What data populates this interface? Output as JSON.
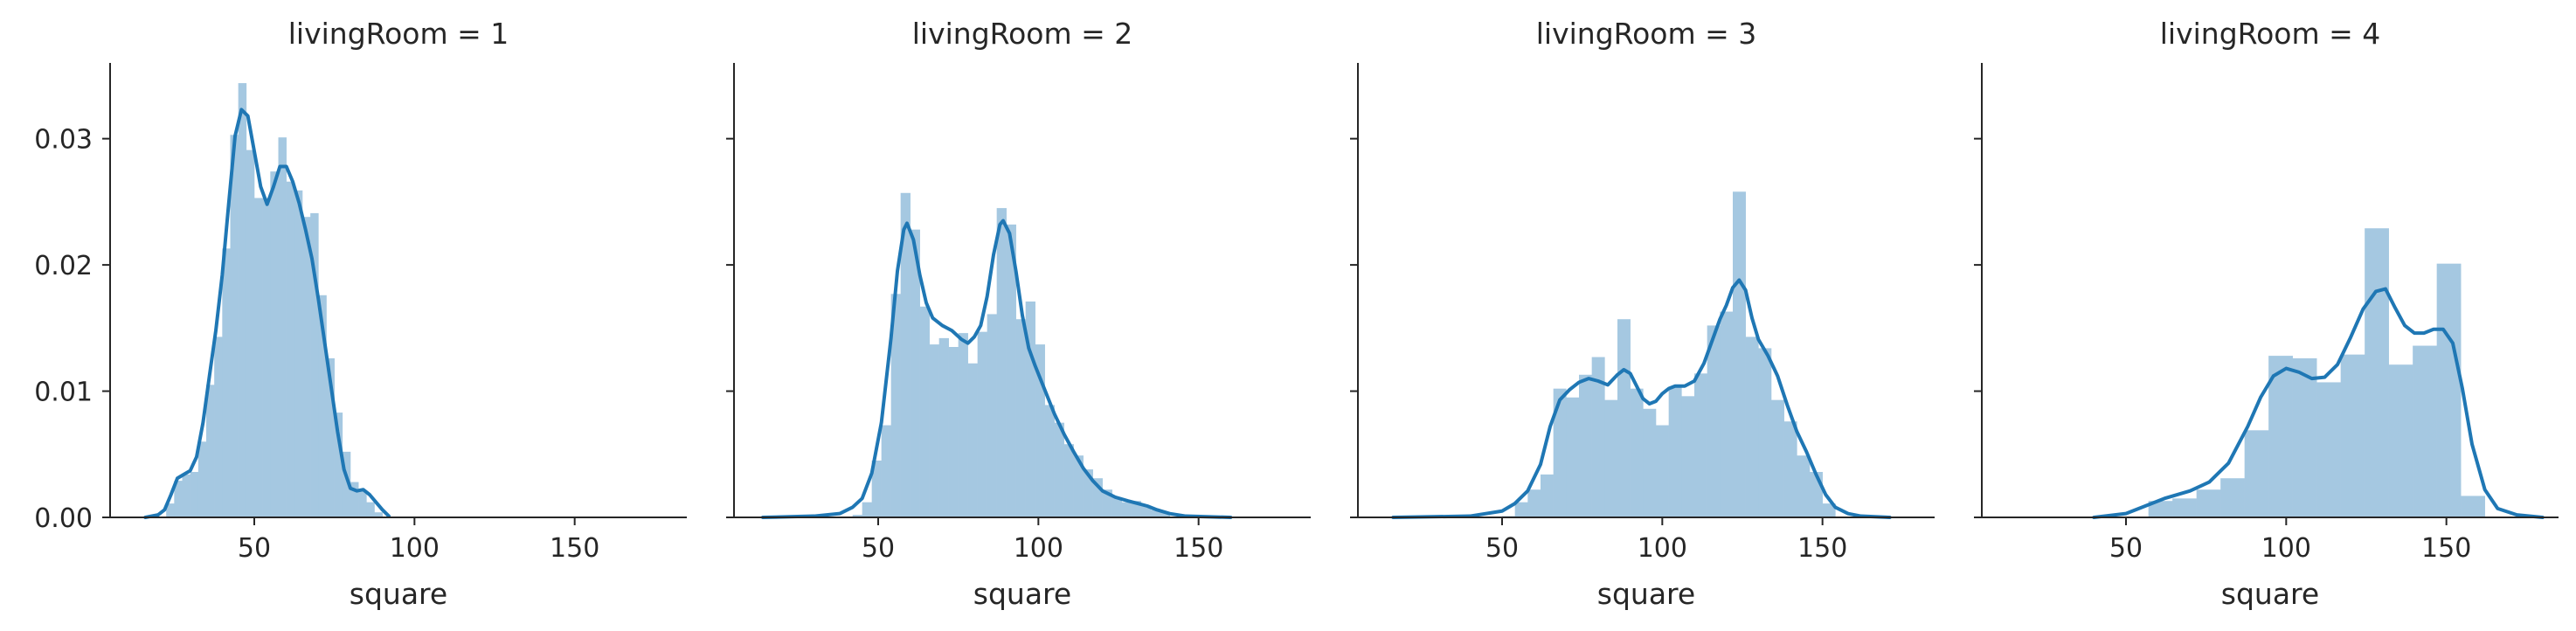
{
  "chart_data": [
    {
      "type": "histogram+kde",
      "title": "livingRoom = 1",
      "xlabel": "square",
      "ylabel": "",
      "xlim": [
        5,
        185
      ],
      "ylim": [
        0,
        0.036
      ],
      "xticks": [
        50,
        100,
        150
      ],
      "yticks": [
        0.0,
        0.01,
        0.02,
        0.03
      ],
      "ytick_labels": [
        "0.00",
        "0.01",
        "0.02",
        "0.03"
      ],
      "xtick_labels": [
        "50",
        "100",
        "150"
      ],
      "bar_color": "#a5c8e1",
      "line_color": "#1f77b4",
      "bins": [
        {
          "x0": 22.5,
          "x1": 25,
          "h": 0.0011
        },
        {
          "x0": 25,
          "x1": 27.5,
          "h": 0.0029
        },
        {
          "x0": 27.5,
          "x1": 30,
          "h": 0.0034
        },
        {
          "x0": 30,
          "x1": 32.5,
          "h": 0.0036
        },
        {
          "x0": 32.5,
          "x1": 35,
          "h": 0.006
        },
        {
          "x0": 35,
          "x1": 37.5,
          "h": 0.0105
        },
        {
          "x0": 37.5,
          "x1": 40,
          "h": 0.0143
        },
        {
          "x0": 40,
          "x1": 42.5,
          "h": 0.0213
        },
        {
          "x0": 42.5,
          "x1": 45,
          "h": 0.0303
        },
        {
          "x0": 45,
          "x1": 47.5,
          "h": 0.0344
        },
        {
          "x0": 47.5,
          "x1": 50,
          "h": 0.0291
        },
        {
          "x0": 50,
          "x1": 52.5,
          "h": 0.0253
        },
        {
          "x0": 52.5,
          "x1": 55,
          "h": 0.0253
        },
        {
          "x0": 55,
          "x1": 57.5,
          "h": 0.0274
        },
        {
          "x0": 57.5,
          "x1": 60,
          "h": 0.0301
        },
        {
          "x0": 60,
          "x1": 62.5,
          "h": 0.0266
        },
        {
          "x0": 62.5,
          "x1": 65,
          "h": 0.0259
        },
        {
          "x0": 65,
          "x1": 67.5,
          "h": 0.0238
        },
        {
          "x0": 67.5,
          "x1": 70,
          "h": 0.0241
        },
        {
          "x0": 70,
          "x1": 72.5,
          "h": 0.0176
        },
        {
          "x0": 72.5,
          "x1": 75,
          "h": 0.0126
        },
        {
          "x0": 75,
          "x1": 77.5,
          "h": 0.0083
        },
        {
          "x0": 77.5,
          "x1": 80,
          "h": 0.0052
        },
        {
          "x0": 80,
          "x1": 82.5,
          "h": 0.0028
        },
        {
          "x0": 82.5,
          "x1": 85,
          "h": 0.0021
        },
        {
          "x0": 85,
          "x1": 87.5,
          "h": 0.0012
        },
        {
          "x0": 87.5,
          "x1": 90,
          "h": 0.0004
        }
      ],
      "kde": [
        [
          16,
          0.0
        ],
        [
          20,
          0.0002
        ],
        [
          22,
          0.0006
        ],
        [
          24,
          0.0018
        ],
        [
          26,
          0.0031
        ],
        [
          28,
          0.0034
        ],
        [
          30,
          0.0037
        ],
        [
          32,
          0.0048
        ],
        [
          34,
          0.0075
        ],
        [
          36,
          0.0112
        ],
        [
          38,
          0.0148
        ],
        [
          40,
          0.0192
        ],
        [
          42,
          0.0248
        ],
        [
          44,
          0.0302
        ],
        [
          46,
          0.0323
        ],
        [
          48,
          0.0318
        ],
        [
          50,
          0.029
        ],
        [
          52,
          0.0262
        ],
        [
          54,
          0.0248
        ],
        [
          56,
          0.0262
        ],
        [
          58,
          0.0278
        ],
        [
          60,
          0.0278
        ],
        [
          62,
          0.0266
        ],
        [
          64,
          0.0249
        ],
        [
          66,
          0.0228
        ],
        [
          68,
          0.0205
        ],
        [
          70,
          0.0173
        ],
        [
          72,
          0.0138
        ],
        [
          74,
          0.0103
        ],
        [
          76,
          0.0068
        ],
        [
          78,
          0.0038
        ],
        [
          80,
          0.0023
        ],
        [
          82,
          0.0021
        ],
        [
          84,
          0.0022
        ],
        [
          86,
          0.0018
        ],
        [
          88,
          0.0012
        ],
        [
          90,
          0.0006
        ],
        [
          92,
          0.0001
        ]
      ]
    },
    {
      "type": "histogram+kde",
      "title": "livingRoom = 2",
      "xlabel": "square",
      "ylabel": "",
      "xlim": [
        5,
        185
      ],
      "ylim": [
        0,
        0.036
      ],
      "xticks": [
        50,
        100,
        150
      ],
      "yticks": [
        0.0,
        0.01,
        0.02,
        0.03
      ],
      "ytick_labels": [
        "0.00",
        "0.01",
        "0.02",
        "0.03"
      ],
      "xtick_labels": [
        "50",
        "100",
        "150"
      ],
      "bar_color": "#a5c8e1",
      "line_color": "#1f77b4",
      "bins": [
        {
          "x0": 42,
          "x1": 45,
          "h": 0.0002
        },
        {
          "x0": 45,
          "x1": 48,
          "h": 0.0012
        },
        {
          "x0": 48,
          "x1": 51,
          "h": 0.0045
        },
        {
          "x0": 51,
          "x1": 54,
          "h": 0.0073
        },
        {
          "x0": 54,
          "x1": 57,
          "h": 0.0177
        },
        {
          "x0": 57,
          "x1": 60,
          "h": 0.0257
        },
        {
          "x0": 60,
          "x1": 63,
          "h": 0.0228
        },
        {
          "x0": 63,
          "x1": 66,
          "h": 0.0167
        },
        {
          "x0": 66,
          "x1": 69,
          "h": 0.0137
        },
        {
          "x0": 69,
          "x1": 72,
          "h": 0.0142
        },
        {
          "x0": 72,
          "x1": 75,
          "h": 0.0135
        },
        {
          "x0": 75,
          "x1": 78,
          "h": 0.0146
        },
        {
          "x0": 78,
          "x1": 81,
          "h": 0.0122
        },
        {
          "x0": 81,
          "x1": 84,
          "h": 0.0147
        },
        {
          "x0": 84,
          "x1": 87,
          "h": 0.0161
        },
        {
          "x0": 87,
          "x1": 90,
          "h": 0.0245
        },
        {
          "x0": 90,
          "x1": 93,
          "h": 0.0232
        },
        {
          "x0": 93,
          "x1": 96,
          "h": 0.0157
        },
        {
          "x0": 96,
          "x1": 99,
          "h": 0.0171
        },
        {
          "x0": 99,
          "x1": 102,
          "h": 0.0137
        },
        {
          "x0": 102,
          "x1": 105,
          "h": 0.0089
        },
        {
          "x0": 105,
          "x1": 108,
          "h": 0.0075
        },
        {
          "x0": 108,
          "x1": 111,
          "h": 0.0058
        },
        {
          "x0": 111,
          "x1": 114,
          "h": 0.0049
        },
        {
          "x0": 114,
          "x1": 117,
          "h": 0.0038
        },
        {
          "x0": 117,
          "x1": 120,
          "h": 0.0031
        },
        {
          "x0": 120,
          "x1": 123,
          "h": 0.0022
        },
        {
          "x0": 123,
          "x1": 126,
          "h": 0.0016
        },
        {
          "x0": 126,
          "x1": 129,
          "h": 0.0012
        },
        {
          "x0": 129,
          "x1": 132,
          "h": 0.0013
        },
        {
          "x0": 132,
          "x1": 135,
          "h": 0.0009
        },
        {
          "x0": 135,
          "x1": 138,
          "h": 0.0006
        },
        {
          "x0": 138,
          "x1": 141,
          "h": 0.0004
        }
      ],
      "kde": [
        [
          14,
          0.0
        ],
        [
          30,
          0.0001
        ],
        [
          38,
          0.0003
        ],
        [
          42,
          0.0008
        ],
        [
          45,
          0.0015
        ],
        [
          48,
          0.0035
        ],
        [
          51,
          0.0075
        ],
        [
          54,
          0.0142
        ],
        [
          56,
          0.0195
        ],
        [
          58,
          0.0228
        ],
        [
          59,
          0.0233
        ],
        [
          61,
          0.022
        ],
        [
          63,
          0.0192
        ],
        [
          65,
          0.017
        ],
        [
          67,
          0.0158
        ],
        [
          70,
          0.0152
        ],
        [
          73,
          0.0148
        ],
        [
          76,
          0.0141
        ],
        [
          78,
          0.0138
        ],
        [
          80,
          0.0143
        ],
        [
          82,
          0.0152
        ],
        [
          84,
          0.0175
        ],
        [
          86,
          0.0208
        ],
        [
          88,
          0.0232
        ],
        [
          89,
          0.0235
        ],
        [
          91,
          0.0225
        ],
        [
          93,
          0.0195
        ],
        [
          95,
          0.016
        ],
        [
          97,
          0.0134
        ],
        [
          99,
          0.012
        ],
        [
          102,
          0.0101
        ],
        [
          105,
          0.0082
        ],
        [
          108,
          0.0066
        ],
        [
          111,
          0.0052
        ],
        [
          114,
          0.0039
        ],
        [
          117,
          0.0029
        ],
        [
          120,
          0.0021
        ],
        [
          124,
          0.0016
        ],
        [
          128,
          0.0013
        ],
        [
          131,
          0.0011
        ],
        [
          134,
          0.0009
        ],
        [
          137,
          0.0006
        ],
        [
          141,
          0.0003
        ],
        [
          146,
          0.0001
        ],
        [
          160,
          0.0
        ]
      ]
    },
    {
      "type": "histogram+kde",
      "title": "livingRoom = 3",
      "xlabel": "square",
      "ylabel": "",
      "xlim": [
        5,
        185
      ],
      "ylim": [
        0,
        0.036
      ],
      "xticks": [
        50,
        100,
        150
      ],
      "yticks": [
        0.0,
        0.01,
        0.02,
        0.03
      ],
      "ytick_labels": [
        "0.00",
        "0.01",
        "0.02",
        "0.03"
      ],
      "xtick_labels": [
        "50",
        "100",
        "150"
      ],
      "bar_color": "#a5c8e1",
      "line_color": "#1f77b4",
      "bins": [
        {
          "x0": 50,
          "x1": 54,
          "h": 0.0001
        },
        {
          "x0": 54,
          "x1": 58,
          "h": 0.0012
        },
        {
          "x0": 58,
          "x1": 62,
          "h": 0.0022
        },
        {
          "x0": 62,
          "x1": 66,
          "h": 0.0034
        },
        {
          "x0": 66,
          "x1": 70,
          "h": 0.0102
        },
        {
          "x0": 70,
          "x1": 74,
          "h": 0.0095
        },
        {
          "x0": 74,
          "x1": 78,
          "h": 0.0113
        },
        {
          "x0": 78,
          "x1": 82,
          "h": 0.0127
        },
        {
          "x0": 82,
          "x1": 86,
          "h": 0.0093
        },
        {
          "x0": 86,
          "x1": 90,
          "h": 0.0157
        },
        {
          "x0": 90,
          "x1": 94,
          "h": 0.0102
        },
        {
          "x0": 94,
          "x1": 98,
          "h": 0.0086
        },
        {
          "x0": 98,
          "x1": 102,
          "h": 0.0073
        },
        {
          "x0": 102,
          "x1": 106,
          "h": 0.0103
        },
        {
          "x0": 106,
          "x1": 110,
          "h": 0.0096
        },
        {
          "x0": 110,
          "x1": 114,
          "h": 0.0114
        },
        {
          "x0": 114,
          "x1": 118,
          "h": 0.0152
        },
        {
          "x0": 118,
          "x1": 122,
          "h": 0.0163
        },
        {
          "x0": 122,
          "x1": 126,
          "h": 0.0258
        },
        {
          "x0": 126,
          "x1": 130,
          "h": 0.0143
        },
        {
          "x0": 130,
          "x1": 134,
          "h": 0.0134
        },
        {
          "x0": 134,
          "x1": 138,
          "h": 0.0093
        },
        {
          "x0": 138,
          "x1": 142,
          "h": 0.0076
        },
        {
          "x0": 142,
          "x1": 146,
          "h": 0.0049
        },
        {
          "x0": 146,
          "x1": 150,
          "h": 0.0036
        },
        {
          "x0": 150,
          "x1": 154,
          "h": 0.0011
        }
      ],
      "kde": [
        [
          16,
          0.0
        ],
        [
          40,
          0.0001
        ],
        [
          50,
          0.0005
        ],
        [
          54,
          0.0011
        ],
        [
          58,
          0.0021
        ],
        [
          62,
          0.0042
        ],
        [
          65,
          0.0072
        ],
        [
          68,
          0.0093
        ],
        [
          71,
          0.0101
        ],
        [
          74,
          0.0107
        ],
        [
          77,
          0.011
        ],
        [
          80,
          0.0108
        ],
        [
          83,
          0.0105
        ],
        [
          86,
          0.0113
        ],
        [
          88,
          0.0117
        ],
        [
          90,
          0.0114
        ],
        [
          92,
          0.0104
        ],
        [
          94,
          0.0094
        ],
        [
          96,
          0.009
        ],
        [
          98,
          0.0092
        ],
        [
          100,
          0.0098
        ],
        [
          102,
          0.0102
        ],
        [
          104,
          0.0104
        ],
        [
          107,
          0.0104
        ],
        [
          110,
          0.0108
        ],
        [
          113,
          0.0122
        ],
        [
          116,
          0.0143
        ],
        [
          118,
          0.0157
        ],
        [
          120,
          0.0168
        ],
        [
          122,
          0.0182
        ],
        [
          124,
          0.0188
        ],
        [
          126,
          0.018
        ],
        [
          128,
          0.0158
        ],
        [
          130,
          0.0141
        ],
        [
          133,
          0.0128
        ],
        [
          136,
          0.0112
        ],
        [
          139,
          0.0089
        ],
        [
          142,
          0.0068
        ],
        [
          145,
          0.0052
        ],
        [
          148,
          0.0034
        ],
        [
          151,
          0.0018
        ],
        [
          154,
          0.0008
        ],
        [
          158,
          0.0003
        ],
        [
          162,
          0.0001
        ],
        [
          171,
          0.0
        ]
      ]
    },
    {
      "type": "histogram+kde",
      "title": "livingRoom = 4",
      "xlabel": "square",
      "ylabel": "",
      "xlim": [
        5,
        185
      ],
      "ylim": [
        0,
        0.036
      ],
      "xticks": [
        50,
        100,
        150
      ],
      "yticks": [
        0.0,
        0.01,
        0.02,
        0.03
      ],
      "ytick_labels": [
        "0.00",
        "0.01",
        "0.02",
        "0.03"
      ],
      "xtick_labels": [
        "50",
        "100",
        "150"
      ],
      "bar_color": "#a5c8e1",
      "line_color": "#1f77b4",
      "bins": [
        {
          "x0": 57,
          "x1": 64.5,
          "h": 0.0013
        },
        {
          "x0": 64.5,
          "x1": 72,
          "h": 0.0015
        },
        {
          "x0": 72,
          "x1": 79.5,
          "h": 0.0022
        },
        {
          "x0": 79.5,
          "x1": 87,
          "h": 0.0031
        },
        {
          "x0": 87,
          "x1": 94.5,
          "h": 0.0069
        },
        {
          "x0": 94.5,
          "x1": 102,
          "h": 0.0128
        },
        {
          "x0": 102,
          "x1": 109.5,
          "h": 0.0126
        },
        {
          "x0": 109.5,
          "x1": 117,
          "h": 0.0107
        },
        {
          "x0": 117,
          "x1": 124.5,
          "h": 0.0129
        },
        {
          "x0": 124.5,
          "x1": 132,
          "h": 0.0229
        },
        {
          "x0": 132,
          "x1": 139.5,
          "h": 0.0121
        },
        {
          "x0": 139.5,
          "x1": 147,
          "h": 0.0136
        },
        {
          "x0": 147,
          "x1": 154.5,
          "h": 0.0201
        },
        {
          "x0": 154.5,
          "x1": 162,
          "h": 0.0017
        }
      ],
      "kde": [
        [
          40,
          0.0
        ],
        [
          50,
          0.0003
        ],
        [
          56,
          0.0009
        ],
        [
          62,
          0.0015
        ],
        [
          70,
          0.0021
        ],
        [
          76,
          0.0028
        ],
        [
          82,
          0.0043
        ],
        [
          88,
          0.0072
        ],
        [
          92,
          0.0095
        ],
        [
          96,
          0.0112
        ],
        [
          100,
          0.0118
        ],
        [
          104,
          0.0115
        ],
        [
          108,
          0.011
        ],
        [
          112,
          0.0111
        ],
        [
          116,
          0.0121
        ],
        [
          120,
          0.0142
        ],
        [
          124,
          0.0165
        ],
        [
          128,
          0.0179
        ],
        [
          131,
          0.0181
        ],
        [
          134,
          0.0166
        ],
        [
          137,
          0.0152
        ],
        [
          140,
          0.0146
        ],
        [
          143,
          0.0146
        ],
        [
          146,
          0.0149
        ],
        [
          149,
          0.0149
        ],
        [
          152,
          0.0138
        ],
        [
          155,
          0.0102
        ],
        [
          158,
          0.0058
        ],
        [
          162,
          0.0022
        ],
        [
          166,
          0.0007
        ],
        [
          172,
          0.0002
        ],
        [
          180,
          0.0
        ]
      ]
    }
  ]
}
